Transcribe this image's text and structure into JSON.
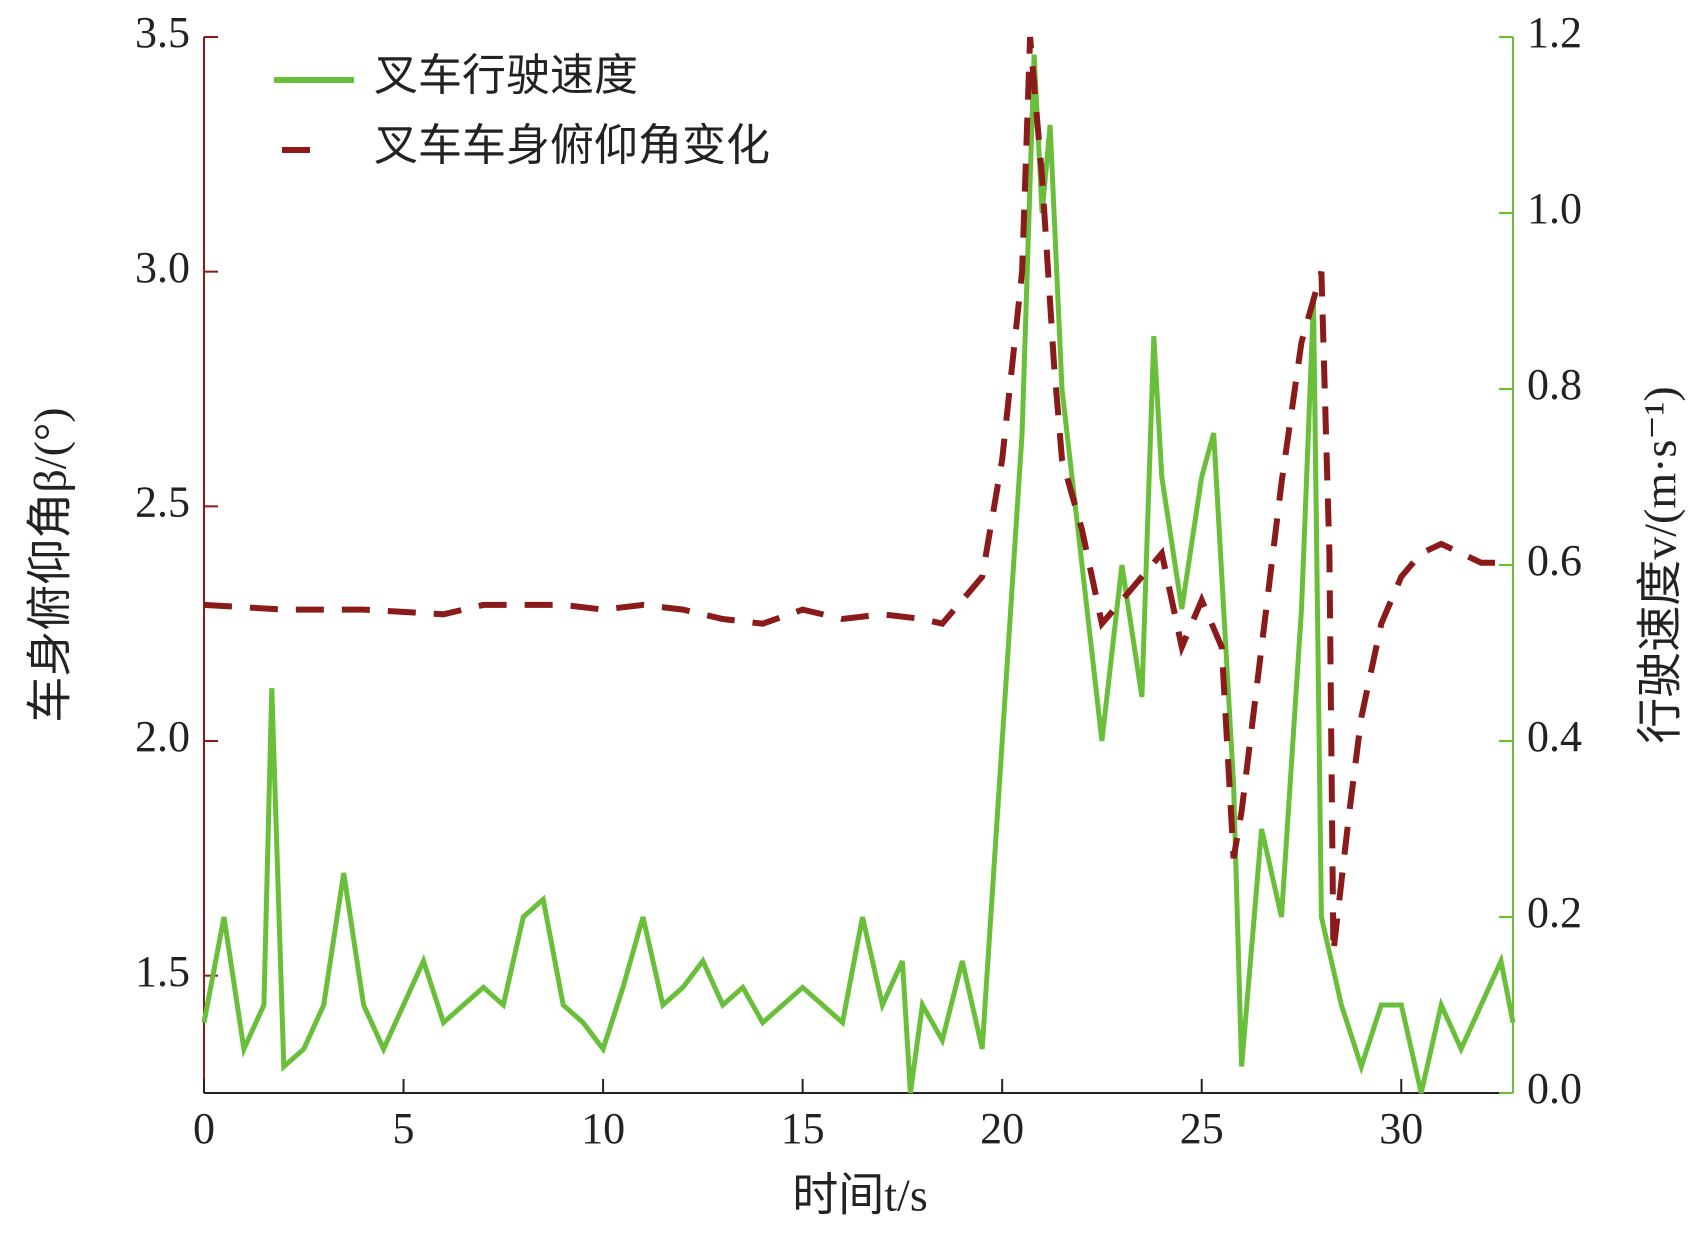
{
  "chart_data": {
    "type": "line",
    "xlabel": "时间t/s",
    "ylabel": "车身俯仰角β/(°)",
    "y2label": "行驶速度v/(m·s⁻¹)",
    "xlim": [
      0,
      32.8
    ],
    "xticks": [
      0,
      5,
      10,
      15,
      20,
      25,
      30
    ],
    "ylim": [
      1.25,
      3.5
    ],
    "yticks": [
      1.5,
      {
        "value": 2.0,
        "label": "2.0"
      },
      2.5,
      {
        "value": 3.0,
        "label": "3.0"
      },
      3.5
    ],
    "y2lim": [
      0,
      1.2
    ],
    "y2ticks": [
      {
        "value": 0,
        "label": "0.0"
      },
      0.2,
      0.4,
      0.6,
      0.8,
      {
        "value": 1.0,
        "label": "1.0"
      },
      1.2
    ],
    "legend": "upper left",
    "series": [
      {
        "name": "叉车行驶速度",
        "color": "#6abf3a",
        "axis": "y2",
        "x": [
          0,
          0.5,
          1.0,
          1.5,
          1.7,
          2.0,
          2.5,
          3.0,
          3.5,
          4.0,
          4.5,
          5.0,
          5.5,
          6.0,
          6.5,
          7.0,
          7.5,
          8.0,
          8.5,
          9.0,
          9.5,
          10.0,
          10.5,
          11.0,
          11.5,
          12.0,
          12.5,
          13.0,
          13.5,
          14.0,
          14.5,
          15.0,
          15.5,
          16.0,
          16.5,
          17.0,
          17.5,
          17.7,
          18.0,
          18.5,
          19.0,
          19.5,
          20.0,
          20.5,
          20.8,
          21.0,
          21.2,
          21.5,
          22.0,
          22.5,
          23.0,
          23.5,
          23.8,
          24.0,
          24.5,
          25.0,
          25.3,
          25.8,
          26.0,
          26.5,
          27.0,
          27.5,
          27.8,
          28.0,
          28.5,
          29.0,
          29.5,
          30.0,
          30.5,
          31.0,
          31.5,
          32.0,
          32.5,
          32.8
        ],
        "values": [
          0.08,
          0.2,
          0.05,
          0.1,
          0.46,
          0.03,
          0.05,
          0.1,
          0.25,
          0.1,
          0.05,
          0.1,
          0.15,
          0.08,
          0.1,
          0.12,
          0.1,
          0.2,
          0.22,
          0.1,
          0.08,
          0.05,
          0.12,
          0.2,
          0.1,
          0.12,
          0.15,
          0.1,
          0.12,
          0.08,
          0.1,
          0.12,
          0.1,
          0.08,
          0.2,
          0.1,
          0.15,
          0.0,
          0.1,
          0.06,
          0.15,
          0.05,
          0.4,
          0.75,
          1.18,
          1.0,
          1.1,
          0.8,
          0.6,
          0.4,
          0.6,
          0.45,
          0.86,
          0.7,
          0.55,
          0.7,
          0.75,
          0.35,
          0.03,
          0.3,
          0.2,
          0.55,
          0.9,
          0.2,
          0.1,
          0.03,
          0.1,
          0.1,
          0.0,
          0.1,
          0.05,
          0.1,
          0.15,
          0.08
        ]
      },
      {
        "name": "叉车车身俯仰角变化",
        "color": "#8b1a1a",
        "axis": "y",
        "dashed": true,
        "x": [
          0,
          2,
          4,
          6,
          7,
          9,
          10,
          11,
          12,
          13,
          14,
          15,
          16,
          17,
          18,
          18.5,
          19,
          19.5,
          20,
          20.5,
          20.7,
          21,
          21.3,
          21.5,
          22,
          22.5,
          23,
          23.5,
          24,
          24.5,
          25,
          25.5,
          25.8,
          26,
          26.5,
          27,
          27.5,
          28,
          28.2,
          28.3,
          28.7,
          29,
          29.5,
          30,
          30.5,
          31,
          31.5,
          32,
          32.8
        ],
        "values": [
          2.29,
          2.28,
          2.28,
          2.27,
          2.29,
          2.29,
          2.28,
          2.29,
          2.28,
          2.26,
          2.25,
          2.28,
          2.26,
          2.27,
          2.26,
          2.25,
          2.3,
          2.35,
          2.6,
          3.0,
          3.5,
          3.2,
          2.8,
          2.6,
          2.45,
          2.25,
          2.3,
          2.35,
          2.4,
          2.2,
          2.3,
          2.2,
          1.75,
          1.85,
          2.2,
          2.55,
          2.85,
          3.0,
          2.4,
          1.55,
          1.85,
          2.05,
          2.25,
          2.35,
          2.4,
          2.42,
          2.4,
          2.38,
          2.38
        ]
      }
    ]
  }
}
